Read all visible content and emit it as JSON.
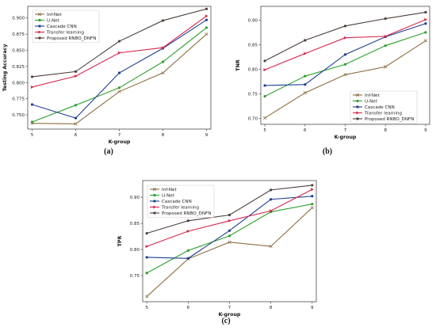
{
  "captions": [
    "(a)",
    "(b)",
    "(c)"
  ],
  "chart_data": [
    {
      "type": "line",
      "caption": "(a)",
      "xlabel": "K-group",
      "ylabel": "Testing Accuracy",
      "x": [
        5,
        6,
        7,
        8,
        9
      ],
      "xlim": [
        4.9,
        9.1
      ],
      "ylim": [
        0.728,
        0.918
      ],
      "yticks": [
        0.75,
        0.775,
        0.8,
        0.825,
        0.85,
        0.875,
        0.9
      ],
      "ytick_labels": [
        "0.750",
        "0.775",
        "0.800",
        "0.825",
        "0.850",
        "0.875",
        "0.900"
      ],
      "legend_position": "top-left",
      "series": [
        {
          "name": "Inf-Net",
          "color": "#8c6d3f",
          "marker": "x",
          "values": [
            0.737,
            0.736,
            0.786,
            0.815,
            0.875
          ]
        },
        {
          "name": "U-Net",
          "color": "#2ca02c",
          "marker": "circle",
          "values": [
            0.739,
            0.765,
            0.792,
            0.832,
            0.885
          ]
        },
        {
          "name": "Cascade CNN",
          "color": "#1f3f8f",
          "marker": "circle",
          "values": [
            0.766,
            0.745,
            0.815,
            0.853,
            0.897
          ]
        },
        {
          "name": "Transfer learning",
          "color": "#d6274b",
          "marker": "triangle",
          "values": [
            0.793,
            0.81,
            0.846,
            0.854,
            0.903
          ]
        },
        {
          "name": "Proposed RNBO_DNFN",
          "color": "#4a3f3a",
          "marker": "circle",
          "values": [
            0.809,
            0.817,
            0.864,
            0.896,
            0.914
          ]
        }
      ]
    },
    {
      "type": "line",
      "caption": "(b)",
      "xlabel": "K-group",
      "ylabel": "TNR",
      "x": [
        5,
        6,
        7,
        8,
        9
      ],
      "xlim": [
        4.9,
        9.1
      ],
      "ylim": [
        0.688,
        0.928
      ],
      "yticks": [
        0.7,
        0.75,
        0.8,
        0.85,
        0.9
      ],
      "ytick_labels": [
        "0.70",
        "0.75",
        "0.80",
        "0.85",
        "0.90"
      ],
      "legend_position": "bottom-right",
      "series": [
        {
          "name": "Inf-Net",
          "color": "#8c6d3f",
          "marker": "x",
          "values": [
            0.701,
            0.752,
            0.789,
            0.805,
            0.858
          ]
        },
        {
          "name": "U-Net",
          "color": "#2ca02c",
          "marker": "circle",
          "values": [
            0.745,
            0.786,
            0.81,
            0.848,
            0.875
          ]
        },
        {
          "name": "Cascade CNN",
          "color": "#1f3f8f",
          "marker": "circle",
          "values": [
            0.767,
            0.769,
            0.83,
            0.866,
            0.893
          ]
        },
        {
          "name": "Transfer learning",
          "color": "#d6274b",
          "marker": "triangle",
          "values": [
            0.799,
            0.832,
            0.864,
            0.867,
            0.901
          ]
        },
        {
          "name": "Proposed RNBO_DNFN",
          "color": "#4a3f3a",
          "marker": "circle",
          "values": [
            0.817,
            0.859,
            0.888,
            0.903,
            0.916
          ]
        }
      ]
    },
    {
      "type": "line",
      "caption": "(c)",
      "xlabel": "K-group",
      "ylabel": "TPR",
      "x": [
        5,
        6,
        7,
        8,
        9
      ],
      "xlim": [
        4.9,
        9.1
      ],
      "ylim": [
        0.7,
        0.932
      ],
      "yticks": [
        0.75,
        0.8,
        0.85,
        0.9
      ],
      "ytick_labels": [
        "0.75",
        "0.80",
        "0.85",
        "0.90"
      ],
      "legend_position": "top-left",
      "series": [
        {
          "name": "Inf-Net",
          "color": "#8c6d3f",
          "marker": "x",
          "values": [
            0.71,
            0.782,
            0.814,
            0.806,
            0.88
          ]
        },
        {
          "name": "U-Net",
          "color": "#2ca02c",
          "marker": "circle",
          "values": [
            0.755,
            0.798,
            0.826,
            0.872,
            0.887
          ]
        },
        {
          "name": "Cascade CNN",
          "color": "#1f3f8f",
          "marker": "circle",
          "values": [
            0.785,
            0.783,
            0.836,
            0.896,
            0.902
          ]
        },
        {
          "name": "Transfer learning",
          "color": "#d6274b",
          "marker": "triangle",
          "values": [
            0.806,
            0.835,
            0.855,
            0.874,
            0.915
          ]
        },
        {
          "name": "Proposed RNBO_DNFN",
          "color": "#4a3f3a",
          "marker": "circle",
          "values": [
            0.831,
            0.855,
            0.866,
            0.914,
            0.923
          ]
        }
      ]
    }
  ]
}
